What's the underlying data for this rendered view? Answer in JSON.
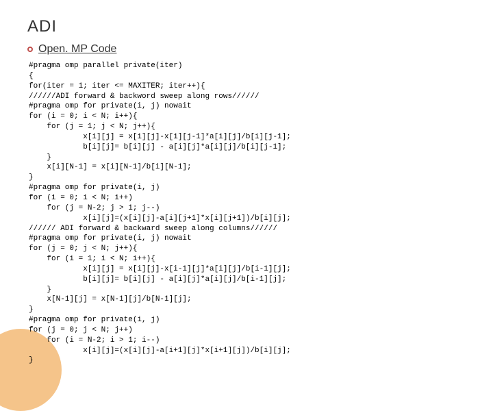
{
  "title": "ADI",
  "subtitle": "Open. MP Code",
  "code_lines": [
    "#pragma omp parallel private(iter)",
    "{",
    "for(iter = 1; iter <= MAXITER; iter++){",
    "//////ADI forward & backword sweep along rows//////",
    "#pragma omp for private(i, j) nowait",
    "for (i = 0; i < N; i++){",
    "    for (j = 1; j < N; j++){",
    "            x[i][j] = x[i][j]-x[i][j-1]*a[i][j]/b[i][j-1];",
    "            b[i][j]= b[i][j] - a[i][j]*a[i][j]/b[i][j-1];",
    "    }",
    "    x[i][N-1] = x[i][N-1]/b[i][N-1];",
    "}",
    "#pragma omp for private(i, j)",
    "for (i = 0; i < N; i++)",
    "    for (j = N-2; j > 1; j--)",
    "            x[i][j]=(x[i][j]-a[i][j+1]*x[i][j+1])/b[i][j];",
    "////// ADI forward & backward sweep along columns//////",
    "#pragma omp for private(i, j) nowait",
    "for (j = 0; j < N; j++){",
    "    for (i = 1; i < N; i++){",
    "            x[i][j] = x[i][j]-x[i-1][j]*a[i][j]/b[i-1][j];",
    "            b[i][j]= b[i][j] - a[i][j]*a[i][j]/b[i-1][j];",
    "    }",
    "    x[N-1][j] = x[N-1][j]/b[N-1][j];",
    "}",
    "#pragma omp for private(i, j)",
    "for (j = 0; j < N; j++)",
    "    for (i = N-2; i > 1; i--)",
    "            x[i][j]=(x[i][j]-a[i+1][j]*x[i+1][j])/b[i][j];",
    "}"
  ],
  "colors": {
    "circle": "#f5c48a",
    "bullet_border": "#c0504d"
  }
}
